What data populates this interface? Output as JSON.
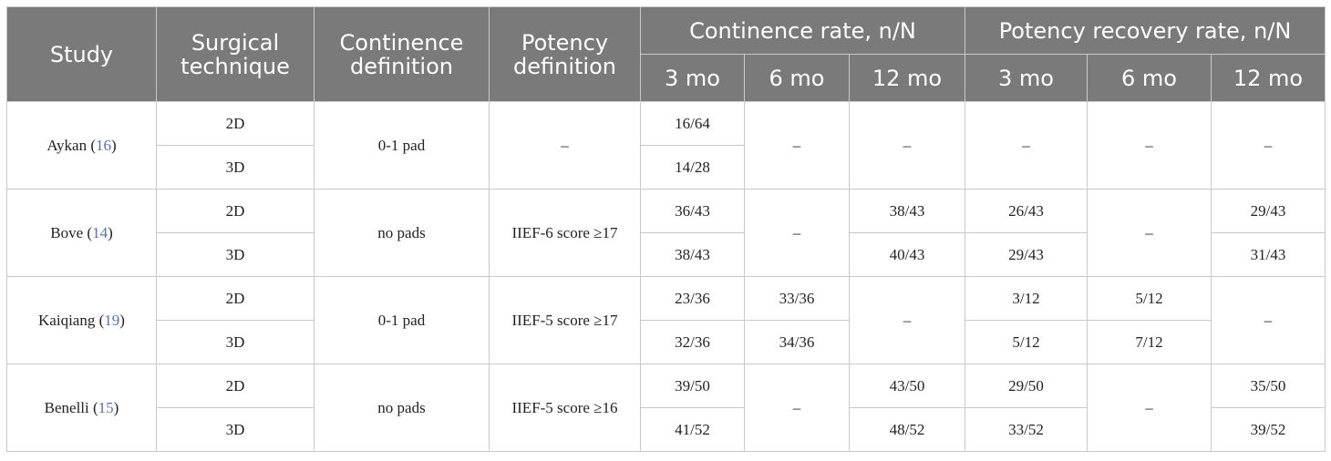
{
  "headers": {
    "study": "Study",
    "technique": "Surgical technique",
    "continence_def": "Continence definition",
    "potency_def": "Potency definition",
    "continence_rate": "Continence rate, n/N",
    "potency_rate": "Potency recovery rate, n/N",
    "periods": [
      "3 mo",
      "6 mo",
      "12 mo"
    ]
  },
  "studies": [
    {
      "name": "Aykan",
      "ref": "16",
      "continence_def": "0-1 pad",
      "potency_def": "–",
      "rows": [
        {
          "technique": "2D",
          "c3": "16/64"
        },
        {
          "technique": "3D",
          "c3": "14/28"
        }
      ],
      "c6": "–",
      "c12": "–",
      "p3": "–",
      "p6": "–",
      "p12": "–"
    },
    {
      "name": "Bove",
      "ref": "14",
      "continence_def": "no pads",
      "potency_def": "IIEF-6 score ≥17",
      "rows": [
        {
          "technique": "2D",
          "c3": "36/43",
          "c12": "38/43",
          "p3": "26/43",
          "p12": "29/43"
        },
        {
          "technique": "3D",
          "c3": "38/43",
          "c12": "40/43",
          "p3": "29/43",
          "p12": "31/43"
        }
      ],
      "c6": "–",
      "p6": "–"
    },
    {
      "name": "Kaiqiang",
      "ref": "19",
      "continence_def": "0-1 pad",
      "potency_def": "IIEF-5 score ≥17",
      "rows": [
        {
          "technique": "2D",
          "c3": "23/36",
          "c6": "33/36",
          "p3": "3/12",
          "p6": "5/12"
        },
        {
          "technique": "3D",
          "c3": "32/36",
          "c6": "34/36",
          "p3": "5/12",
          "p6": "7/12"
        }
      ],
      "c12": "–",
      "p12": "–"
    },
    {
      "name": "Benelli",
      "ref": "15",
      "continence_def": "no pads",
      "potency_def": "IIEF-5 score ≥16",
      "rows": [
        {
          "technique": "2D",
          "c3": "39/50",
          "c12": "43/50",
          "p3": "29/50",
          "p12": "35/50"
        },
        {
          "technique": "3D",
          "c3": "41/52",
          "c12": "48/52",
          "p3": "33/52",
          "p12": "39/52"
        }
      ],
      "c6": "–",
      "p6": "–"
    }
  ]
}
